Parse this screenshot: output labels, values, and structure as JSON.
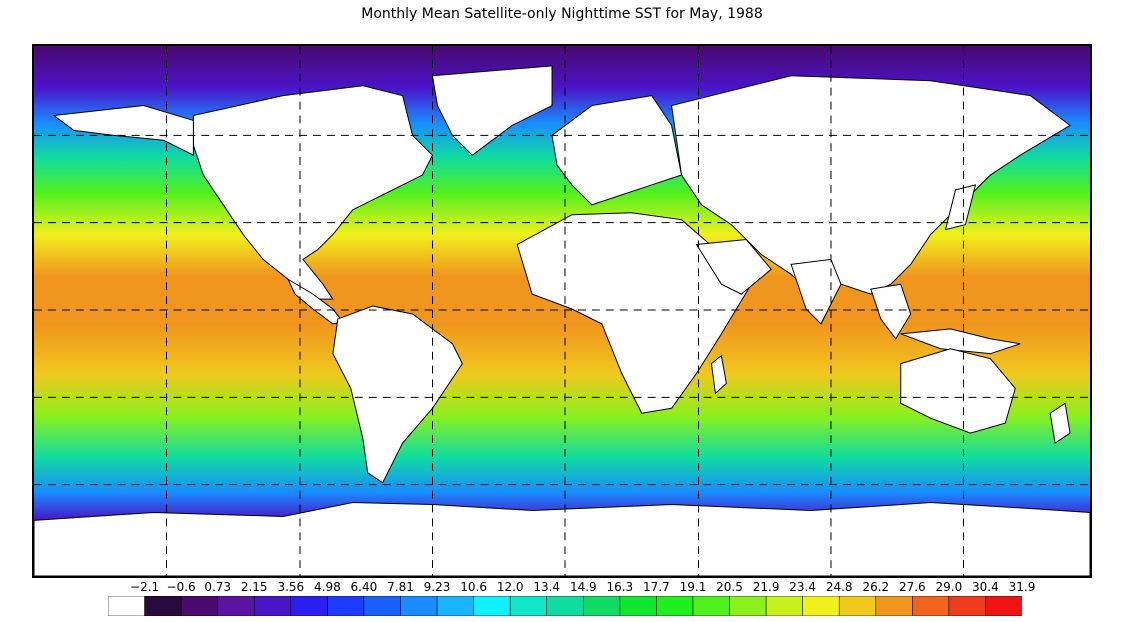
{
  "title": "Monthly Mean Satellite-only Nighttime SST for May, 1988",
  "legend": {
    "labels": [
      "−2.1",
      "−0.6",
      "0.73",
      "2.15",
      "3.56",
      "4.98",
      "6.40",
      "7.81",
      "9.23",
      "10.6",
      "12.0",
      "13.4",
      "14.9",
      "16.3",
      "17.7",
      "19.1",
      "20.5",
      "21.9",
      "23.4",
      "24.8",
      "26.2",
      "27.6",
      "29.0",
      "30.4",
      "31.9"
    ],
    "colors": [
      "#ffffff",
      "#2a0a3c",
      "#4a0a6e",
      "#5a14a0",
      "#4a14c8",
      "#2a1ef0",
      "#1e3cff",
      "#1a60ff",
      "#1a8cff",
      "#1ab4ff",
      "#10f0ff",
      "#10e6c8",
      "#10dca0",
      "#10dc64",
      "#10e630",
      "#1ef01e",
      "#50f01e",
      "#8cf01e",
      "#c8f01e",
      "#f0f01e",
      "#f0c81e",
      "#f0961e",
      "#f0641e",
      "#f03c1e",
      "#f01414"
    ]
  },
  "map": {
    "land_color": "#ffffff",
    "outline_color": "#000000",
    "grid_style": "dashed",
    "sst_bands": [
      {
        "lat": 80,
        "value": -0.6
      },
      {
        "lat": 68,
        "value": 3.5
      },
      {
        "lat": 58,
        "value": 8.5
      },
      {
        "lat": 48,
        "value": 13.5
      },
      {
        "lat": 38,
        "value": 19.5
      },
      {
        "lat": 26,
        "value": 24.5
      },
      {
        "lat": 14,
        "value": 27.0
      },
      {
        "lat": 0,
        "value": 27.5
      },
      {
        "lat": -14,
        "value": 25.0
      },
      {
        "lat": -26,
        "value": 21.0
      },
      {
        "lat": -38,
        "value": 14.5
      },
      {
        "lat": -48,
        "value": 8.0
      },
      {
        "lat": -56,
        "value": 3.0
      },
      {
        "lat": -64,
        "value": -0.6
      },
      {
        "lat": -90,
        "value": -0.6
      }
    ]
  }
}
